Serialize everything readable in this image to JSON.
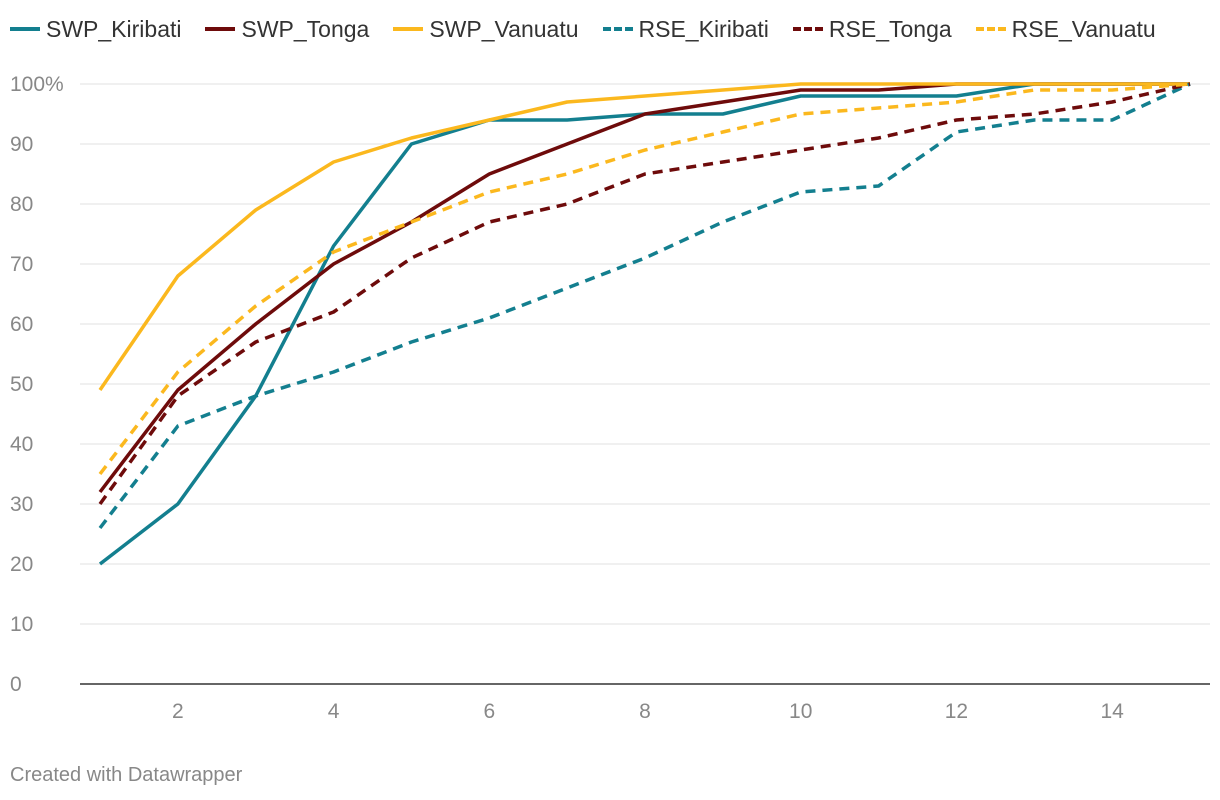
{
  "chart_data": {
    "type": "line",
    "title": "",
    "xlabel": "",
    "ylabel": "",
    "x": [
      1,
      2,
      3,
      4,
      5,
      6,
      7,
      8,
      9,
      10,
      11,
      12,
      13,
      14,
      15
    ],
    "xlim": [
      1,
      15
    ],
    "ylim": [
      0,
      100
    ],
    "x_ticks": [
      2,
      4,
      6,
      8,
      10,
      12,
      14
    ],
    "y_ticks": [
      0,
      10,
      20,
      30,
      40,
      50,
      60,
      70,
      80,
      90,
      100
    ],
    "y_tick_labels": [
      "0",
      "10",
      "20",
      "30",
      "40",
      "50",
      "60",
      "70",
      "80",
      "90",
      "100%"
    ],
    "grid": "horizontal",
    "legend_position": "top",
    "series": [
      {
        "name": "SWP_Kiribati",
        "color": "#137f8f",
        "dash": "solid",
        "values": [
          20,
          30,
          48,
          73,
          90,
          94,
          94,
          95,
          95,
          98,
          98,
          98,
          100,
          100,
          100
        ]
      },
      {
        "name": "SWP_Tonga",
        "color": "#6e0b0b",
        "dash": "solid",
        "values": [
          32,
          49,
          60,
          70,
          77,
          85,
          90,
          95,
          97,
          99,
          99,
          100,
          100,
          100,
          100
        ]
      },
      {
        "name": "SWP_Vanuatu",
        "color": "#fbb81e",
        "dash": "solid",
        "values": [
          49,
          68,
          79,
          87,
          91,
          94,
          97,
          98,
          99,
          100,
          100,
          100,
          100,
          100,
          100
        ]
      },
      {
        "name": "RSE_Kiribati",
        "color": "#137f8f",
        "dash": "dashed",
        "values": [
          26,
          43,
          48,
          52,
          57,
          61,
          66,
          71,
          77,
          82,
          83,
          92,
          94,
          94,
          100
        ]
      },
      {
        "name": "RSE_Tonga",
        "color": "#6e0b0b",
        "dash": "dashed",
        "values": [
          30,
          48,
          57,
          62,
          71,
          77,
          80,
          85,
          87,
          89,
          91,
          94,
          95,
          97,
          100
        ]
      },
      {
        "name": "RSE_Vanuatu",
        "color": "#fbb81e",
        "dash": "dashed",
        "values": [
          35,
          52,
          63,
          72,
          77,
          82,
          85,
          89,
          92,
          95,
          96,
          97,
          99,
          99,
          100
        ]
      }
    ]
  },
  "footer": {
    "credit": "Created with Datawrapper"
  }
}
